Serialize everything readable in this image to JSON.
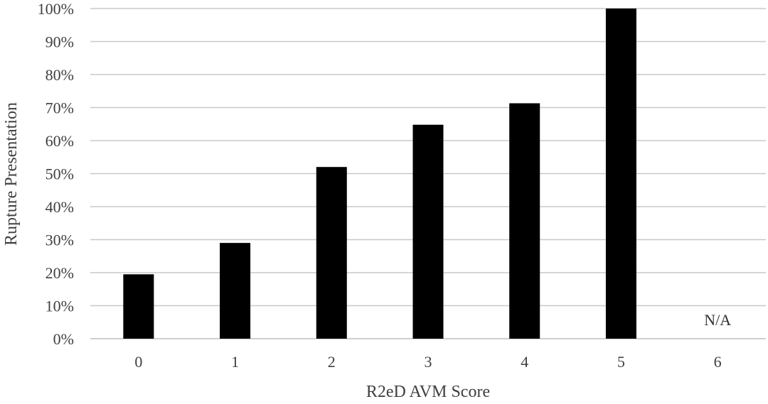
{
  "chart_data": {
    "type": "bar",
    "title": "",
    "xlabel": "R2eD AVM Score",
    "ylabel": "Rupture Presentation",
    "categories": [
      "0",
      "1",
      "2",
      "3",
      "4",
      "5",
      "6"
    ],
    "values": [
      0.195,
      0.29,
      0.52,
      0.648,
      0.713,
      1.0,
      null
    ],
    "ylim": [
      0,
      1
    ],
    "yticks": [
      0,
      0.1,
      0.2,
      0.3,
      0.4,
      0.5,
      0.6,
      0.7,
      0.8,
      0.9,
      1.0
    ],
    "ytick_labels": [
      "0%",
      "10%",
      "20%",
      "30%",
      "40%",
      "50%",
      "60%",
      "70%",
      "80%",
      "90%",
      "100%"
    ],
    "grid": true,
    "bar_color": "#000000",
    "annotations": [
      {
        "category": "6",
        "text": "N/A"
      }
    ]
  }
}
